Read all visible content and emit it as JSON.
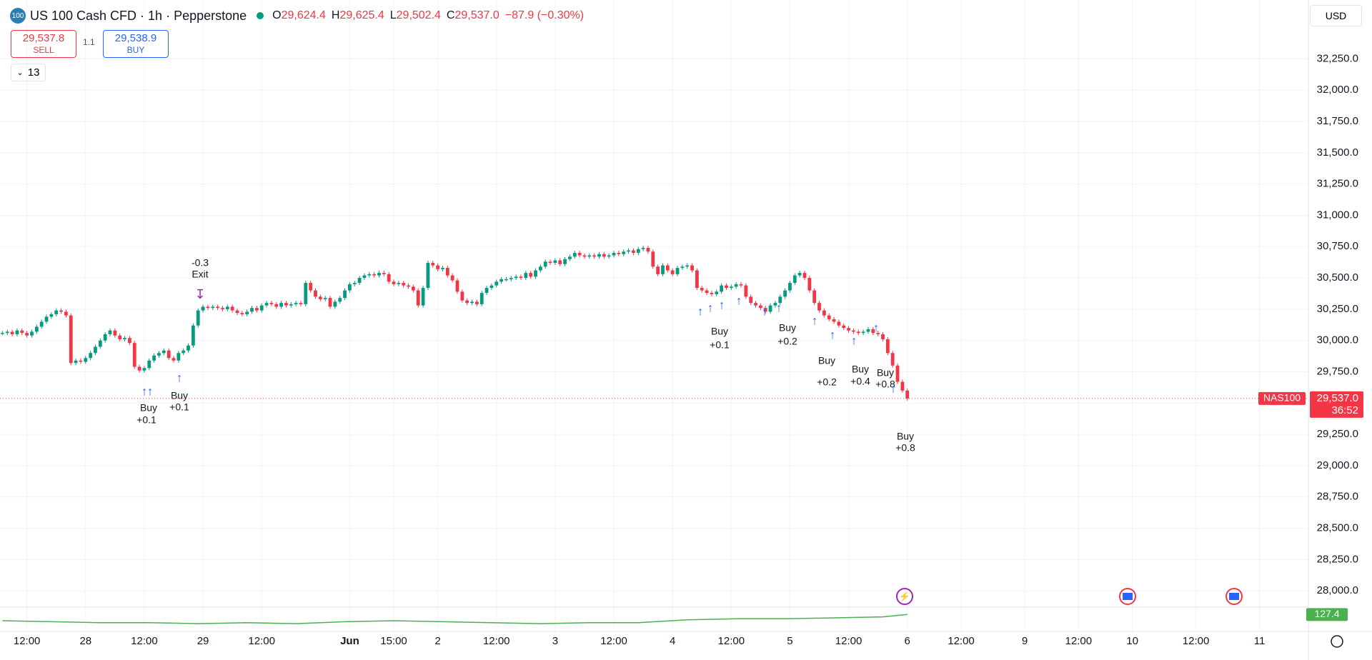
{
  "header": {
    "badge": "100",
    "title": "US 100 Cash CFD · 1h · Pepperstone",
    "ohlc": [
      {
        "key": "O",
        "value": "29,624.4"
      },
      {
        "key": "H",
        "value": "29,625.4"
      },
      {
        "key": "L",
        "value": "29,502.4"
      },
      {
        "key": "C",
        "value": "29,537.0"
      }
    ],
    "change": "−87.9 (−0.30%)",
    "sell_price": "29,537.8",
    "sell_label": "SELL",
    "spread": "1.1",
    "buy_price": "29,538.9",
    "buy_label": "BUY",
    "indicators_count": "13",
    "currency": "USD"
  },
  "chart_data": {
    "type": "candlestick",
    "x": [
      0,
      1,
      2,
      3,
      4,
      5,
      6,
      7,
      8,
      9,
      10,
      11,
      12,
      13,
      14,
      15,
      16,
      17,
      18,
      19,
      20,
      21,
      22,
      23,
      24,
      25,
      26,
      27,
      28,
      29,
      30,
      31,
      32,
      33,
      34,
      35,
      36,
      37,
      38,
      39,
      40,
      41,
      42,
      43,
      44,
      45,
      46,
      47,
      48,
      49,
      50,
      51,
      52,
      53,
      54,
      55,
      56,
      57,
      58,
      59,
      60,
      61,
      62,
      63,
      64,
      65,
      66,
      67,
      68,
      69,
      70,
      71,
      72,
      73,
      74,
      75,
      76,
      77,
      78,
      79,
      80,
      81,
      82,
      83,
      84,
      85,
      86,
      87,
      88,
      89,
      90,
      91,
      92,
      93,
      94,
      95,
      96,
      97,
      98,
      99,
      100,
      101,
      102,
      103,
      104,
      105,
      106,
      107,
      108,
      109,
      110,
      111,
      112,
      113,
      114,
      115,
      116,
      117,
      118,
      119,
      120,
      121,
      122,
      123,
      124,
      125,
      126,
      127,
      128,
      129,
      130,
      131,
      132,
      133,
      134,
      135,
      136,
      137,
      138,
      139,
      140,
      141,
      142,
      143,
      144,
      145,
      146,
      147,
      148,
      149,
      150,
      151,
      152,
      153,
      154,
      155,
      156,
      157,
      158,
      159,
      160,
      161,
      162,
      163,
      164,
      165,
      166,
      167,
      168,
      169,
      170,
      171,
      172,
      173,
      174,
      175,
      176,
      177,
      178,
      179,
      180,
      181,
      182,
      183,
      184,
      185
    ],
    "values": [
      30060,
      30070,
      30050,
      30080,
      30060,
      30040,
      30070,
      30110,
      30150,
      30190,
      30210,
      30240,
      30230,
      30200,
      29820,
      29840,
      29830,
      29860,
      29900,
      29950,
      30000,
      30050,
      30080,
      30040,
      30010,
      30020,
      29980,
      29790,
      29760,
      29780,
      29840,
      29880,
      29900,
      29920,
      29860,
      29840,
      29900,
      29920,
      29960,
      30120,
      30240,
      30270,
      30260,
      30270,
      30260,
      30250,
      30270,
      30240,
      30220,
      30210,
      30230,
      30260,
      30240,
      30280,
      30300,
      30290,
      30270,
      30300,
      30280,
      30290,
      30300,
      30290,
      30460,
      30400,
      30350,
      30330,
      30340,
      30270,
      30310,
      30340,
      30400,
      30450,
      30460,
      30500,
      30520,
      30530,
      30520,
      30540,
      30530,
      30470,
      30450,
      30460,
      30440,
      30430,
      30400,
      30280,
      30420,
      30620,
      30600,
      30570,
      30580,
      30520,
      30480,
      30390,
      30320,
      30300,
      30310,
      30290,
      30380,
      30420,
      30440,
      30470,
      30490,
      30490,
      30500,
      30510,
      30500,
      30540,
      30510,
      30560,
      30590,
      30630,
      30620,
      30640,
      30610,
      30650,
      30670,
      30700,
      30680,
      30670,
      30680,
      30670,
      30690,
      30670,
      30680,
      30700,
      30690,
      30710,
      30720,
      30700,
      30730,
      30740,
      30710,
      30590,
      30530,
      30600,
      30560,
      30530,
      30580,
      30590,
      30600,
      30560,
      30420,
      30400,
      30380,
      30370,
      30390,
      30440,
      30420,
      30430,
      30450,
      30440,
      30350,
      30300,
      30280,
      30260,
      30230,
      30280,
      30300,
      30350,
      30400,
      30460,
      30520,
      30540,
      30500,
      30400,
      30300,
      30240,
      30200,
      30170,
      30150,
      30120,
      30100,
      30080,
      30070,
      30060,
      30070,
      30090,
      30060,
      30050,
      30010,
      29900,
      29800,
      29670,
      29600,
      29537
    ],
    "up_color": "#089981",
    "down_color": "#f23645",
    "xlim": [
      -0.5,
      267
    ],
    "ylim": [
      27870,
      32720
    ],
    "grid": true,
    "xticks": [
      {
        "value": 5,
        "label": "12:00"
      },
      {
        "value": 17,
        "label": "28"
      },
      {
        "value": 29,
        "label": "12:00"
      },
      {
        "value": 41,
        "label": "29"
      },
      {
        "value": 53,
        "label": "12:00"
      },
      {
        "value": 71,
        "label": "Jun"
      },
      {
        "value": 80,
        "label": "15:00"
      },
      {
        "value": 89,
        "label": "2"
      },
      {
        "value": 101,
        "label": "12:00"
      },
      {
        "value": 113,
        "label": "3"
      },
      {
        "value": 125,
        "label": "12:00"
      },
      {
        "value": 137,
        "label": "4"
      },
      {
        "value": 149,
        "label": "12:00"
      },
      {
        "value": 161,
        "label": "5"
      },
      {
        "value": 173,
        "label": "12:00"
      },
      {
        "value": 185,
        "label": "6"
      },
      {
        "value": 196,
        "label": "12:00"
      },
      {
        "value": 209,
        "label": "9"
      },
      {
        "value": 220,
        "label": "12:00"
      },
      {
        "value": 231,
        "label": "10"
      },
      {
        "value": 244,
        "label": "12:00"
      },
      {
        "value": 257,
        "label": "11"
      }
    ],
    "yticks": [
      {
        "value": 28000,
        "label": "28,000.0"
      },
      {
        "value": 28250,
        "label": "28,250.0"
      },
      {
        "value": 28500,
        "label": "28,500.0"
      },
      {
        "value": 28750,
        "label": "28,750.0"
      },
      {
        "value": 29000,
        "label": "29,000.0"
      },
      {
        "value": 29250,
        "label": "29,250.0"
      },
      {
        "value": 29500,
        "label": "29,500.0"
      },
      {
        "value": 29750,
        "label": "29,750.0"
      },
      {
        "value": 30000,
        "label": "30,000.0"
      },
      {
        "value": 30250,
        "label": "30,250.0"
      },
      {
        "value": 30500,
        "label": "30,500.0"
      },
      {
        "value": 30750,
        "label": "30,750.0"
      },
      {
        "value": 31000,
        "label": "31,000.0"
      },
      {
        "value": 31250,
        "label": "31,250.0"
      },
      {
        "value": 31500,
        "label": "31,500.0"
      },
      {
        "value": 31750,
        "label": "31,750.0"
      },
      {
        "value": 32000,
        "label": "32,000.0"
      },
      {
        "value": 32250,
        "label": "32,250.0"
      }
    ],
    "symbol_tag": "NAS100",
    "last_label": "29,537.0",
    "countdown": "36:52",
    "annotations": [
      {
        "text": "Exit",
        "pnl": "-0.3"
      },
      {
        "text": "Buy",
        "pnl": "+0.1"
      },
      {
        "text": "Buy",
        "pnl": "+0.1"
      },
      {
        "text": "Buy",
        "pnl": "+0.1"
      },
      {
        "text": "Buy",
        "pnl": "+0.2"
      },
      {
        "text": "Buy",
        "pnl": "+0.2"
      },
      {
        "text": "Buy",
        "pnl": "+0.4"
      },
      {
        "text": "Buy",
        "pnl": "+0.8"
      },
      {
        "text": "Buy",
        "pnl": "+0.8"
      }
    ],
    "indicator": {
      "x": [
        0,
        10,
        20,
        30,
        40,
        50,
        60,
        70,
        80,
        90,
        100,
        110,
        120,
        130,
        140,
        150,
        160,
        170,
        180,
        185
      ],
      "values": [
        121,
        120,
        119,
        119,
        118,
        119,
        118,
        120,
        121,
        120,
        119,
        118,
        119,
        119,
        122,
        123,
        123,
        124,
        125,
        127.4
      ],
      "color": "#4caf50",
      "ylim": [
        110,
        135
      ]
    }
  }
}
